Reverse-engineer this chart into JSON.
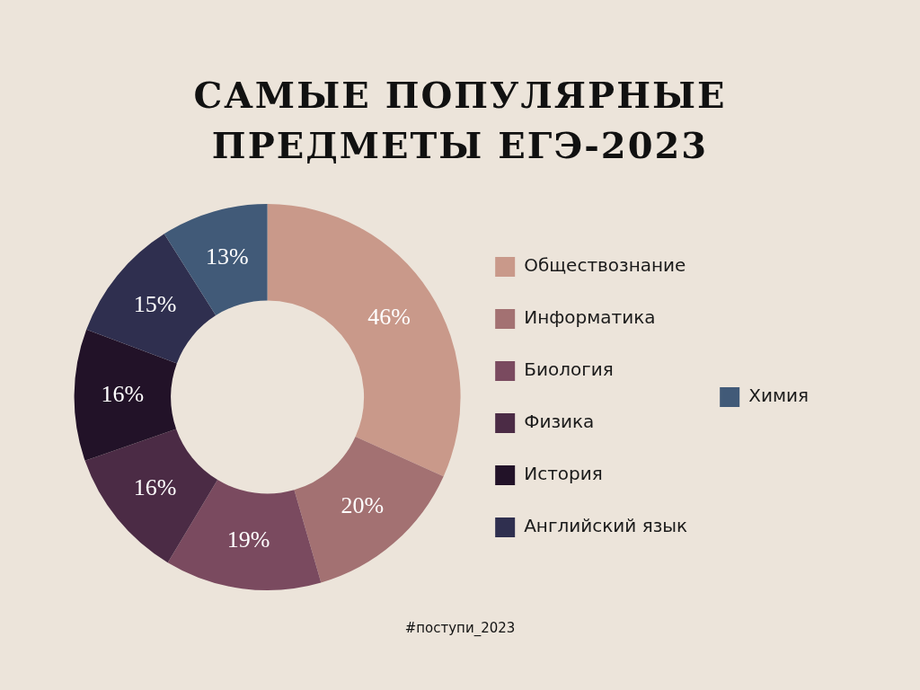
{
  "chart_data": {
    "type": "donut",
    "title": "САМЫЕ ПОПУЛЯРНЫЕ ПРЕДМЕТЫ ЕГЭ-2023",
    "categories": [
      "Обществознание",
      "Информатика",
      "Биология",
      "Физика",
      "История",
      "Английский язык",
      "Химия"
    ],
    "values": [
      46,
      20,
      19,
      16,
      16,
      15,
      13
    ],
    "colors": [
      "#c9998a",
      "#a37172",
      "#7a4a5f",
      "#4b2b45",
      "#221228",
      "#2f2f4f",
      "#415a78"
    ],
    "value_labels": [
      "46%",
      "20%",
      "19%",
      "16%",
      "16%",
      "15%",
      "13%"
    ],
    "legend": "right",
    "annotations": [
      "#поступи_2023"
    ]
  }
}
